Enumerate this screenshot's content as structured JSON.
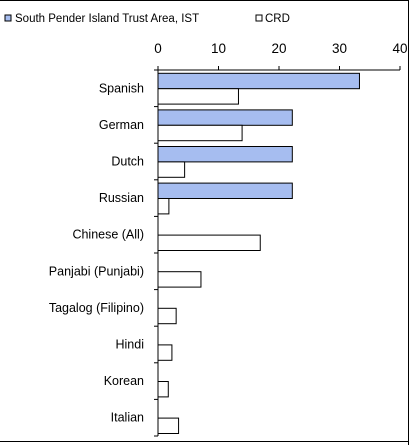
{
  "chart_data": {
    "type": "bar",
    "orientation": "horizontal",
    "categories": [
      "Spanish",
      "German",
      "Dutch",
      "Russian",
      "Chinese (All)",
      "Panjabi (Punjabi)",
      "Tagalog (Filipino)",
      "Hindi",
      "Korean",
      "Italian"
    ],
    "series": [
      {
        "name": "South Pender Island Trust Area, IST",
        "color": "#a6bdf0",
        "values": [
          33.3,
          22.2,
          22.2,
          22.2,
          null,
          null,
          null,
          null,
          null,
          null
        ]
      },
      {
        "name": "CRD",
        "color": "#ffffff",
        "values": [
          13.3,
          13.9,
          4.4,
          1.8,
          16.9,
          7.1,
          3.0,
          2.3,
          1.7,
          3.4
        ]
      }
    ],
    "xlim": [
      0,
      40
    ],
    "xticks": [
      "0",
      "10",
      "20",
      "30",
      "40"
    ],
    "axis_position": "top",
    "grid": false,
    "legend_position": "top"
  }
}
